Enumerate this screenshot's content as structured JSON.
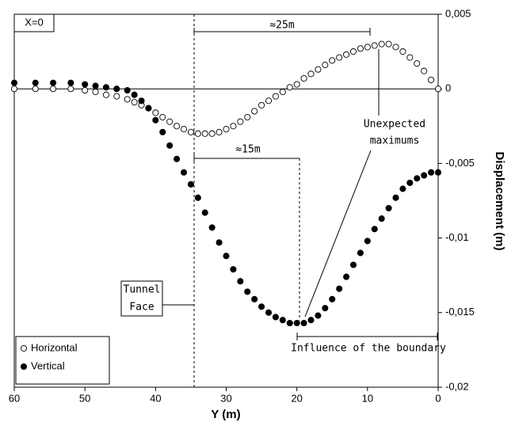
{
  "chart_data": {
    "type": "scatter",
    "xlabel": "Y (m)",
    "ylabel": "Displacement (m)",
    "xlim": [
      60,
      0
    ],
    "xticks": [
      60,
      50,
      40,
      30,
      20,
      10,
      0
    ],
    "ylim": [
      -0.02,
      0.005
    ],
    "yticks": [
      {
        "value": 0.005,
        "label": "0,005"
      },
      0,
      {
        "value": -0.005,
        "label": "-0,005"
      },
      {
        "value": -0.01,
        "label": "-0,01"
      },
      {
        "value": -0.015,
        "label": "-0,015"
      },
      {
        "value": -0.02,
        "label": "-0,02"
      }
    ],
    "legend": "lower left",
    "annotations": {
      "section": "X=0",
      "span_top": "≈25m",
      "span_mid": "≈15m",
      "maximums": [
        "Unexpected",
        "maximums"
      ],
      "face": [
        "Tunnel",
        "Face"
      ],
      "boundary": "Influence of the boundary"
    },
    "x": [
      60,
      57,
      54.5,
      52,
      50,
      48.5,
      47,
      45.5,
      44,
      43,
      42,
      41,
      40,
      39,
      38,
      37,
      36,
      35,
      34,
      33,
      32,
      31,
      30,
      29,
      28,
      27,
      26,
      25,
      24,
      23,
      22,
      21,
      20,
      19,
      18,
      17,
      16,
      15,
      14,
      13,
      12,
      11,
      10,
      9,
      8,
      7,
      6,
      5,
      4,
      3,
      2,
      1,
      0
    ],
    "series": [
      {
        "name": "Horizontal",
        "color": "#ffffff",
        "values": [
          0,
          0,
          0,
          0,
          -0.0001,
          -0.0002,
          -0.0004,
          -0.0005,
          -0.0007,
          -0.0009,
          -0.0011,
          -0.0013,
          -0.0016,
          -0.0019,
          -0.0022,
          -0.0025,
          -0.0027,
          -0.0029,
          -0.003,
          -0.003,
          -0.003,
          -0.0029,
          -0.0027,
          -0.0025,
          -0.0022,
          -0.0019,
          -0.0015,
          -0.0011,
          -0.0008,
          -0.0005,
          -0.0002,
          0.0001,
          0.0003,
          0.0007,
          0.001,
          0.0013,
          0.0016,
          0.0019,
          0.0021,
          0.0023,
          0.0025,
          0.0027,
          0.0028,
          0.0029,
          0.003,
          0.003,
          0.0028,
          0.0025,
          0.0021,
          0.0017,
          0.0012,
          0.0006,
          0
        ]
      },
      {
        "name": "Vertical",
        "color": "#000000",
        "values": [
          0.0004,
          0.0004,
          0.0004,
          0.0004,
          0.0003,
          0.0002,
          0.0001,
          0,
          -0.0001,
          -0.0004,
          -0.0008,
          -0.0013,
          -0.0021,
          -0.0029,
          -0.0038,
          -0.0047,
          -0.0056,
          -0.0064,
          -0.0073,
          -0.0083,
          -0.0093,
          -0.0103,
          -0.0112,
          -0.0121,
          -0.0129,
          -0.0136,
          -0.0141,
          -0.0146,
          -0.015,
          -0.0153,
          -0.0155,
          -0.0157,
          -0.0157,
          -0.0157,
          -0.0155,
          -0.0152,
          -0.0147,
          -0.0141,
          -0.0134,
          -0.0126,
          -0.0118,
          -0.011,
          -0.0102,
          -0.0094,
          -0.0087,
          -0.008,
          -0.0073,
          -0.0067,
          -0.0063,
          -0.006,
          -0.0058,
          -0.0056,
          -0.0056
        ]
      }
    ]
  }
}
